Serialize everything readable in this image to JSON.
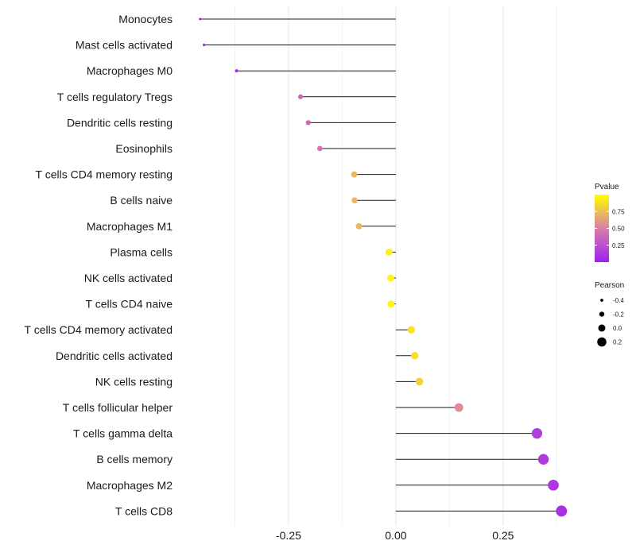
{
  "chart_data": {
    "type": "lollipop",
    "categories": [
      "Monocytes",
      "Mast cells activated",
      "Macrophages M0",
      "T cells regulatory  Tregs",
      "Dendritic cells resting",
      "Eosinophils",
      "T cells CD4 memory resting",
      "B cells naive",
      "Macrophages M1",
      "Plasma cells",
      "NK cells activated",
      "T cells CD4 naive",
      "T cells CD4 memory activated",
      "Dendritic cells activated",
      "NK cells resting",
      "T cells follicular helper",
      "T cells gamma delta",
      "B cells memory",
      "Macrophages M2",
      "T cells CD8"
    ],
    "pearson": [
      -0.456,
      -0.447,
      -0.371,
      -0.222,
      -0.204,
      -0.177,
      -0.097,
      -0.096,
      -0.086,
      -0.016,
      -0.012,
      -0.011,
      0.036,
      0.044,
      0.055,
      0.147,
      0.329,
      0.344,
      0.367,
      0.386
    ],
    "pvalue": [
      0.01,
      0.01,
      0.06,
      0.37,
      0.39,
      0.45,
      0.72,
      0.72,
      0.72,
      0.95,
      0.96,
      0.96,
      0.9,
      0.87,
      0.83,
      0.55,
      0.15,
      0.14,
      0.12,
      0.09
    ],
    "x_ticks": [
      -0.25,
      0.0,
      0.25
    ],
    "x_tick_labels": [
      "-0.25",
      "0.00",
      "0.25"
    ],
    "xlim": [
      -0.5,
      0.43
    ],
    "legend": {
      "color_title": "Pvalue",
      "color_ticks": [
        0.25,
        0.5,
        0.75
      ],
      "color_tick_labels": [
        "0.25",
        "0.50",
        "0.75"
      ],
      "color_range": [
        0.0,
        1.0
      ],
      "color_low": "#a020f0",
      "color_mid": "#d77fa8",
      "color_high": "#ffff00",
      "size_title": "Pearson",
      "size_values": [
        -0.4,
        -0.2,
        0.0,
        0.2
      ],
      "size_labels": [
        "-0.4",
        "-0.2",
        "0.0",
        "0.2"
      ],
      "position": "right"
    },
    "grid": true
  }
}
